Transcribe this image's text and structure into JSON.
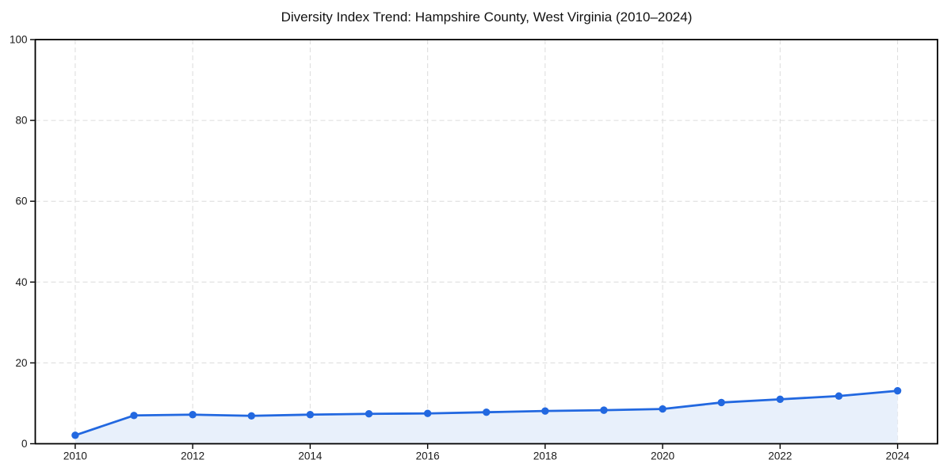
{
  "chart_data": {
    "type": "area",
    "title": "Diversity Index Trend: Hampshire County, West Virginia (2010–2024)",
    "series_name": "Diversity Index",
    "x": [
      2010,
      2011,
      2012,
      2013,
      2014,
      2015,
      2016,
      2017,
      2018,
      2019,
      2020,
      2021,
      2022,
      2023,
      2024
    ],
    "values": [
      2.1,
      7.0,
      7.2,
      6.9,
      7.2,
      7.4,
      7.5,
      7.8,
      8.1,
      8.3,
      8.6,
      10.2,
      11.0,
      11.8,
      13.1
    ],
    "xlabel": "",
    "ylabel": "",
    "xlim": [
      2009.32,
      2024.68
    ],
    "ylim": [
      0,
      100
    ],
    "xticks": [
      2010,
      2012,
      2014,
      2016,
      2018,
      2020,
      2022,
      2024
    ],
    "yticks": [
      0,
      20,
      40,
      60,
      80,
      100
    ],
    "grid": true,
    "grid_style": "dashed",
    "legend": "none",
    "marker": "circle",
    "colors": {
      "line": "#2268e0",
      "marker": "#2268e0",
      "fill": "#e8f0fb",
      "grid": "#dcdcdc",
      "axis": "#000000",
      "tick_label": "#1a1a1a",
      "title": "#111111",
      "background": "#ffffff"
    }
  }
}
